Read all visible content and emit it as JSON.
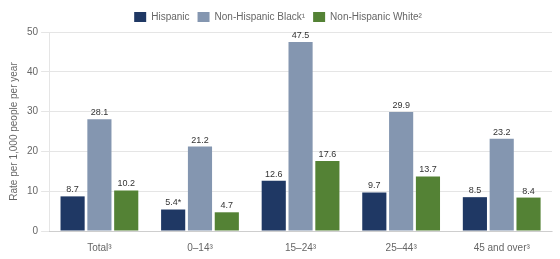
{
  "chart_data": {
    "type": "bar",
    "ylabel": "Rate per 1,000 people per year",
    "categories": [
      "Total³",
      "0–14³",
      "15–24³",
      "25–44³",
      "45 and over³"
    ],
    "series": [
      {
        "name": "Hispanic",
        "color": "#1f3864",
        "values": [
          8.7,
          5.4,
          12.6,
          9.7,
          8.5
        ],
        "value_labels": [
          "8.7",
          "5.4*",
          "12.6",
          "9.7",
          "8.5"
        ]
      },
      {
        "name": "Non-Hispanic Black¹",
        "color": "#8496b0",
        "values": [
          28.1,
          21.2,
          47.5,
          29.9,
          23.2
        ]
      },
      {
        "name": "Non-Hispanic White²",
        "color": "#548235",
        "values": [
          10.2,
          4.7,
          17.6,
          13.7,
          8.4
        ]
      }
    ],
    "ylim": [
      0,
      50
    ],
    "yticks": [
      0,
      10,
      20,
      30,
      40,
      50
    ],
    "grid": true,
    "legend": "top",
    "data_labels": true
  }
}
